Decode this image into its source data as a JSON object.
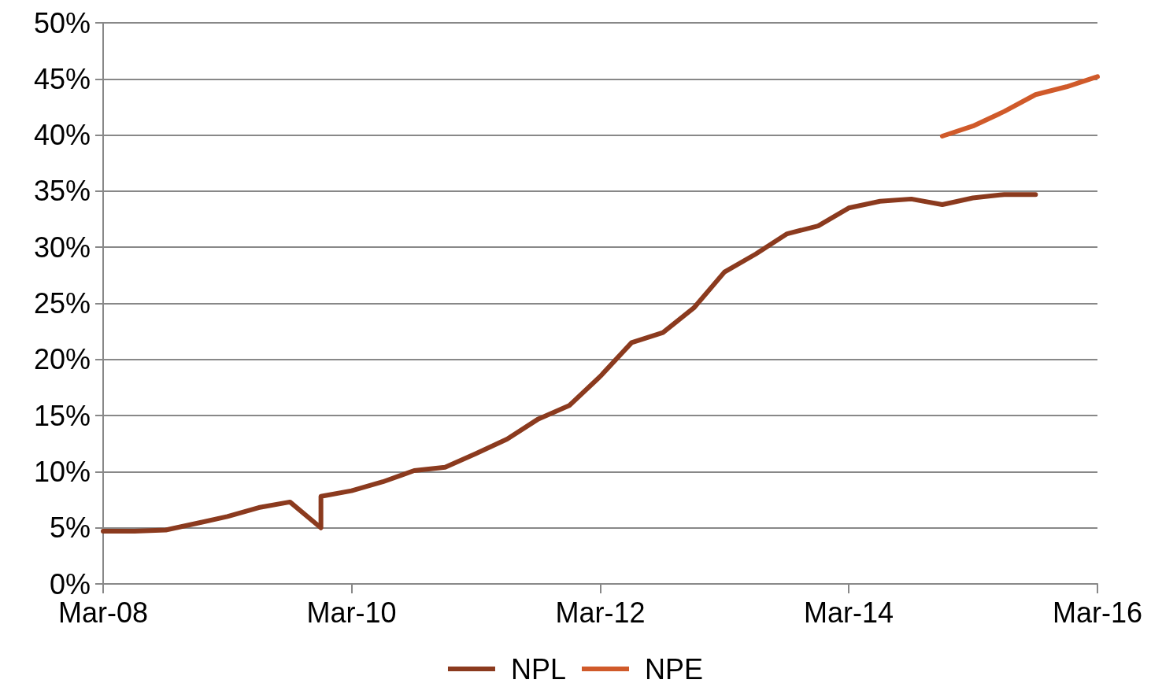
{
  "chart_data": {
    "type": "line",
    "grid": "y",
    "legend": "bottom",
    "marker": "none",
    "line_style": "solid",
    "xlim": [
      "2008-03",
      "2016-03"
    ],
    "xticks": [
      {
        "value": "2008-03",
        "label": "Mar-08"
      },
      {
        "value": "2010-03",
        "label": "Mar-10"
      },
      {
        "value": "2012-03",
        "label": "Mar-12"
      },
      {
        "value": "2014-03",
        "label": "Mar-14"
      },
      {
        "value": "2016-03",
        "label": "Mar-16"
      }
    ],
    "ylim": [
      0,
      50
    ],
    "yticks": [
      {
        "value": 0,
        "label": "0%"
      },
      {
        "value": 5,
        "label": "5%"
      },
      {
        "value": 10,
        "label": "10%"
      },
      {
        "value": 15,
        "label": "15%"
      },
      {
        "value": 20,
        "label": "20%"
      },
      {
        "value": 25,
        "label": "25%"
      },
      {
        "value": 30,
        "label": "30%"
      },
      {
        "value": 35,
        "label": "35%"
      },
      {
        "value": 40,
        "label": "40%"
      },
      {
        "value": 45,
        "label": "45%"
      },
      {
        "value": 50,
        "label": "50%"
      }
    ],
    "series": [
      {
        "name": "NPL",
        "color": "#8b3a1e",
        "x": [
          "2008-03",
          "2008-06",
          "2008-09",
          "2008-12",
          "2009-03",
          "2009-06",
          "2009-09",
          "2009-12",
          "2009-12",
          "2010-03",
          "2010-06",
          "2010-09",
          "2010-12",
          "2011-03",
          "2011-06",
          "2011-09",
          "2011-12",
          "2012-03",
          "2012-06",
          "2012-09",
          "2012-12",
          "2013-03",
          "2013-06",
          "2013-09",
          "2013-12",
          "2014-03",
          "2014-06",
          "2014-09",
          "2014-12",
          "2015-03",
          "2015-06",
          "2015-09"
        ],
        "values": [
          4.7,
          4.7,
          4.8,
          5.4,
          6.0,
          6.8,
          7.3,
          5.0,
          7.8,
          8.3,
          9.1,
          10.1,
          10.4,
          11.6,
          12.9,
          14.7,
          15.9,
          18.5,
          21.5,
          22.4,
          24.6,
          27.8,
          29.4,
          31.2,
          31.9,
          33.5,
          34.1,
          34.3,
          33.8,
          34.4,
          34.7,
          34.7
        ]
      },
      {
        "name": "NPE",
        "color": "#d05a2a",
        "x": [
          "2014-12",
          "2015-03",
          "2015-06",
          "2015-09",
          "2015-12",
          "2016-03"
        ],
        "values": [
          39.9,
          40.8,
          42.1,
          43.6,
          44.3,
          45.2
        ]
      }
    ]
  }
}
